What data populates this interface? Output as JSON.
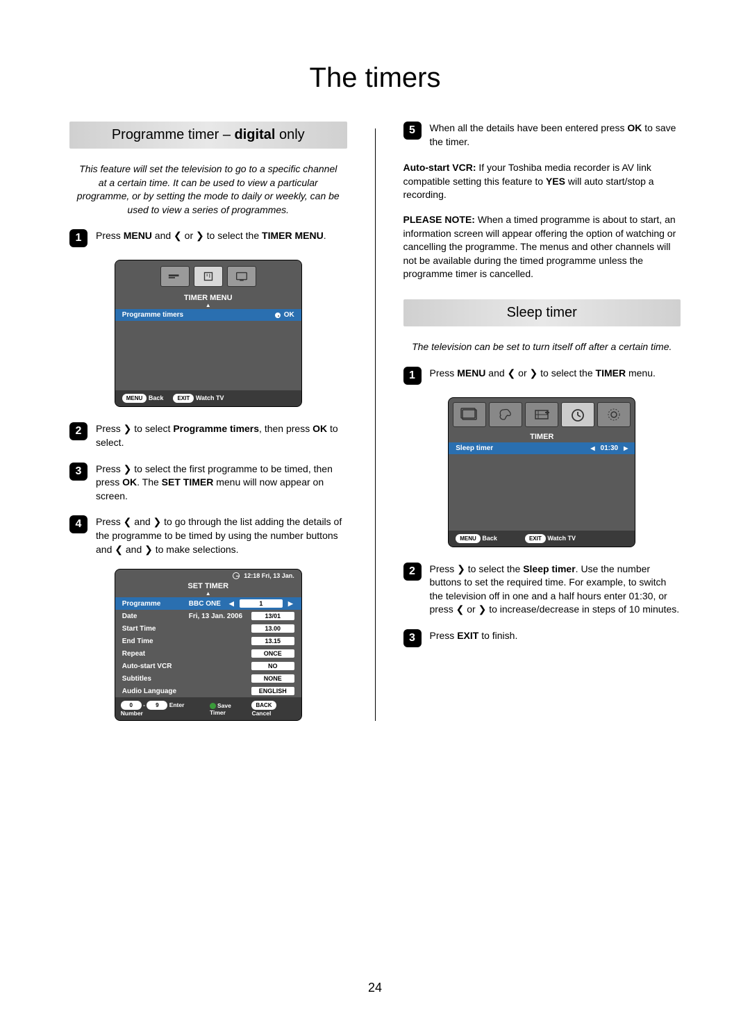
{
  "page": {
    "title": "The timers",
    "number": "24"
  },
  "left": {
    "header": {
      "prefix": "Programme timer – ",
      "bold": "digital",
      "suffix": " only"
    },
    "intro": "This feature will set the television to go to a specific channel at a certain time. It can be used to view a particular programme, or by setting the mode to daily or weekly, can be used to view a series of programmes.",
    "steps": {
      "s1": {
        "pre": "Press ",
        "b1": "MENU",
        "mid": " and ❮ or ❯ to select the ",
        "b2": "TIMER MENU",
        "post": "."
      },
      "s2": {
        "pre": "Press ❯ to select ",
        "b1": "Programme timers",
        "mid": ", then press ",
        "b2": "OK",
        "post": " to select."
      },
      "s3": {
        "pre": "Press ❯ to select the first programme to be timed, then press ",
        "b1": "OK",
        "mid": ". The ",
        "b2": "SET TIMER",
        "post": " menu will now appear on screen."
      },
      "s4": "Press ❮ and ❯ to go through the list adding the details of the programme to be timed by using the number buttons and ❮ and ❯ to make selections."
    },
    "timer_menu": {
      "title": "TIMER MENU",
      "row_label": "Programme timers",
      "row_ok": "OK",
      "footer_back_pill": "MENU",
      "footer_back": "Back",
      "footer_exit_pill": "EXIT",
      "footer_watch": "Watch TV"
    },
    "set_timer": {
      "clock": "12:18 Fri, 13 Jan.",
      "title": "SET TIMER",
      "rows": [
        {
          "label": "Programme",
          "mid": "BBC ONE",
          "val": "1",
          "hl": true,
          "arrows": true
        },
        {
          "label": "Date",
          "mid": "Fri, 13 Jan. 2006",
          "val": "13/01"
        },
        {
          "label": "Start Time",
          "mid": "",
          "val": "13.00"
        },
        {
          "label": "End Time",
          "mid": "",
          "val": "13.15"
        },
        {
          "label": "Repeat",
          "mid": "",
          "val": "ONCE"
        },
        {
          "label": "Auto-start VCR",
          "mid": "",
          "val": "NO"
        },
        {
          "label": "Subtitles",
          "mid": "",
          "val": "NONE"
        },
        {
          "label": "Audio Language",
          "mid": "",
          "val": "ENGLISH"
        }
      ],
      "footer": {
        "enter": "Enter Number",
        "zero": "0",
        "nine": "9",
        "save": "Save Timer",
        "back_pill": "BACK",
        "cancel": "Cancel"
      }
    }
  },
  "right": {
    "s5": {
      "pre": "When all the details have been entered press ",
      "b1": "OK",
      "post": " to save the timer."
    },
    "para1": {
      "b": "Auto-start VCR:",
      "rest": " If your Toshiba media recorder is AV link compatible setting this feature to ",
      "b2": "YES",
      "rest2": " will auto start/stop a recording."
    },
    "para2": {
      "b": "PLEASE NOTE:",
      "rest": " When a timed programme is about to start, an information screen will appear offering the option of watching or cancelling the programme. The menus and other channels will not be available during the timed programme unless the programme timer is cancelled."
    },
    "sleep_header": "Sleep timer",
    "sleep_intro": "The television can be set to turn itself off after a certain time.",
    "sleep_steps": {
      "s1": {
        "pre": "Press ",
        "b1": "MENU",
        "mid": " and ❮ or ❯ to select the ",
        "b2": "TIMER",
        "post": " menu."
      },
      "s2": {
        "pre": "Press ❯ to select the ",
        "b1": "Sleep timer",
        "post": ". Use the number buttons to set the required time. For example, to switch the television off in one and a half hours enter 01:30, or press ❮ or ❯ to increase/decrease in steps of 10 minutes."
      },
      "s3": {
        "pre": "Press ",
        "b1": "EXIT",
        "post": " to finish."
      }
    },
    "timer2": {
      "title": "TIMER",
      "row_label": "Sleep timer",
      "row_val": "01:30",
      "footer_menu_pill": "MENU",
      "footer_back": "Back",
      "footer_exit_pill": "EXIT",
      "footer_watch": "Watch TV"
    }
  }
}
